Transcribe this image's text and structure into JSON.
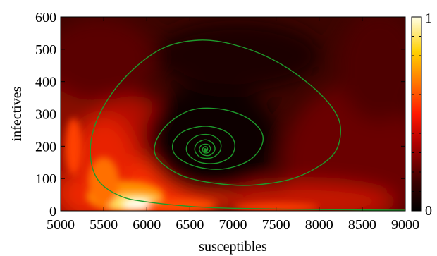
{
  "chart_data": {
    "type": "heatmap",
    "xlabel": "susceptibles",
    "ylabel": "infectives",
    "xlim": [
      5000,
      9000
    ],
    "ylim": [
      0,
      600
    ],
    "xticks": [
      "5000",
      "5500",
      "6000",
      "6500",
      "7000",
      "7500",
      "8000",
      "8500",
      "9000"
    ],
    "yticks": [
      "0",
      "100",
      "200",
      "300",
      "400",
      "500",
      "600"
    ],
    "colorbar": {
      "min_label": "0",
      "max_label": "1",
      "colormap": "hot"
    },
    "grid": false,
    "intensity_hotspots": [
      {
        "s": 5800,
        "i": 30,
        "value": 1.0
      },
      {
        "s": 5600,
        "i": 80,
        "value": 0.8
      },
      {
        "s": 6300,
        "i": 15,
        "value": 0.55
      },
      {
        "s": 5150,
        "i": 200,
        "value": 0.45
      },
      {
        "s": 7600,
        "i": 20,
        "value": 0.45
      }
    ],
    "intensity_dark_spot": {
      "s": 6700,
      "i": 190
    },
    "trajectory": {
      "color": "#1e9a2b",
      "equilibrium": {
        "s": 6680,
        "i": 188
      },
      "start": {
        "s": 9000,
        "i": 2
      },
      "outer_loop": [
        [
          9000,
          2
        ],
        [
          8000,
          4
        ],
        [
          7000,
          8
        ],
        [
          6500,
          14
        ],
        [
          6000,
          28
        ],
        [
          5700,
          45
        ],
        [
          5450,
          90
        ],
        [
          5350,
          160
        ],
        [
          5380,
          250
        ],
        [
          5560,
          350
        ],
        [
          5850,
          440
        ],
        [
          6200,
          505
        ],
        [
          6600,
          528
        ],
        [
          7000,
          515
        ],
        [
          7450,
          470
        ],
        [
          7850,
          400
        ],
        [
          8150,
          320
        ],
        [
          8250,
          250
        ],
        [
          8150,
          170
        ],
        [
          7750,
          105
        ],
        [
          7250,
          80
        ],
        [
          6800,
          85
        ],
        [
          6400,
          110
        ],
        [
          6130,
          160
        ],
        [
          6100,
          210
        ],
        [
          6250,
          270
        ],
        [
          6520,
          312
        ],
        [
          6850,
          315
        ],
        [
          7150,
          290
        ],
        [
          7330,
          245
        ],
        [
          7330,
          200
        ],
        [
          7180,
          155
        ],
        [
          6900,
          130
        ],
        [
          6600,
          135
        ],
        [
          6360,
          165
        ],
        [
          6300,
          205
        ],
        [
          6420,
          245
        ],
        [
          6680,
          262
        ],
        [
          6920,
          245
        ],
        [
          7020,
          210
        ],
        [
          6980,
          170
        ],
        [
          6820,
          148
        ],
        [
          6620,
          150
        ],
        [
          6480,
          175
        ],
        [
          6470,
          205
        ],
        [
          6580,
          232
        ],
        [
          6740,
          235
        ],
        [
          6850,
          215
        ],
        [
          6850,
          185
        ],
        [
          6760,
          165
        ],
        [
          6630,
          165
        ],
        [
          6560,
          185
        ],
        [
          6580,
          208
        ],
        [
          6680,
          220
        ],
        [
          6770,
          208
        ],
        [
          6790,
          188
        ],
        [
          6730,
          172
        ],
        [
          6650,
          174
        ],
        [
          6610,
          190
        ],
        [
          6640,
          204
        ],
        [
          6710,
          205
        ],
        [
          6740,
          192
        ],
        [
          6710,
          180
        ],
        [
          6660,
          181
        ],
        [
          6650,
          193
        ],
        [
          6680,
          199
        ],
        [
          6705,
          193
        ],
        [
          6695,
          184
        ],
        [
          6670,
          185
        ],
        [
          6668,
          191
        ],
        [
          6682,
          192
        ],
        [
          6685,
          187
        ]
      ]
    }
  }
}
